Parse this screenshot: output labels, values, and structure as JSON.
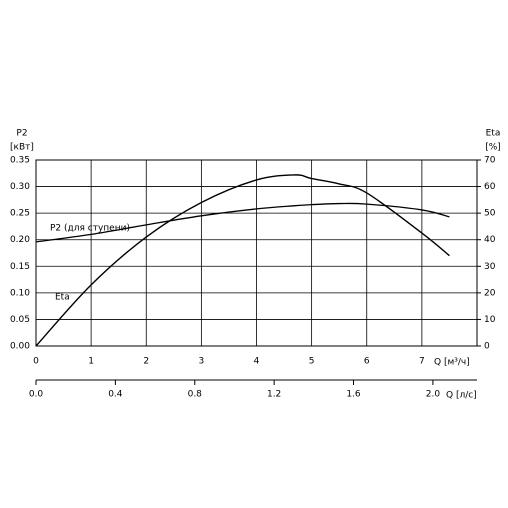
{
  "chart_data": {
    "type": "line",
    "y_label": "P2",
    "y_unit": "[кВт]",
    "y2_label": "Eta",
    "y2_unit": "[%]",
    "x_label": "Q [м³/ч]",
    "x2_label": "Q [л/с]",
    "x": [
      0,
      1,
      2,
      3,
      4,
      4.7,
      5,
      5.5,
      6,
      7,
      7.5
    ],
    "xlim": [
      0,
      8
    ],
    "xticks": [
      0,
      1,
      2,
      3,
      4,
      5,
      6,
      7
    ],
    "x2lim": [
      0,
      2.2222
    ],
    "x2ticks": [
      {
        "value": 0,
        "label": "0.0"
      },
      0.4,
      0.8,
      1.2,
      1.6,
      {
        "value": 2,
        "label": "2.0"
      }
    ],
    "ylim": [
      0,
      0.35
    ],
    "yticks": [
      {
        "value": 0,
        "label": "0.00"
      },
      0.05,
      {
        "value": 0.1,
        "label": "0.10"
      },
      0.15,
      {
        "value": 0.2,
        "label": "0.20"
      },
      0.25,
      {
        "value": 0.3,
        "label": "0.30"
      },
      0.35
    ],
    "y2lim": [
      0,
      70
    ],
    "y2ticks": [
      0,
      10,
      20,
      30,
      40,
      50,
      60,
      70
    ],
    "grid": true,
    "series": [
      {
        "name": "P2 (для ступени)",
        "color": "#000000",
        "values": [
          0.196,
          0.21,
          0.228,
          0.245,
          0.258,
          0.264,
          0.266,
          0.268,
          0.267,
          0.256,
          0.243
        ]
      },
      {
        "name": "Eta",
        "color": "#000000",
        "axis": "y2",
        "values": [
          0,
          23,
          41,
          54,
          62.5,
          64.4,
          63,
          61,
          57.6,
          42.5,
          34
        ]
      }
    ]
  }
}
